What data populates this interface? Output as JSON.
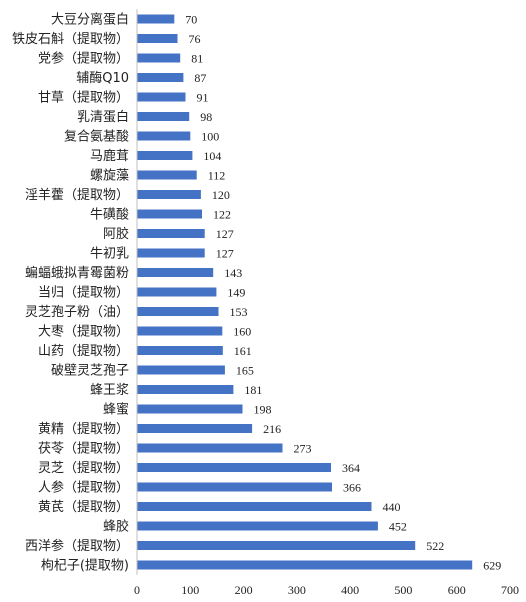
{
  "chart_data": {
    "type": "bar",
    "orientation": "horizontal",
    "categories": [
      "大豆分离蛋白",
      "铁皮石斛（提取物）",
      "党参（提取物）",
      "辅酶Q10",
      "甘草（提取物）",
      "乳清蛋白",
      "复合氨基酸",
      "马鹿茸",
      "螺旋藻",
      "淫羊藿（提取物）",
      "牛磺酸",
      "阿胶",
      "牛初乳",
      "蝙蝠蛾拟青霉菌粉",
      "当归（提取物）",
      "灵芝孢子粉（油）",
      "大枣（提取物）",
      "山药（提取物）",
      "破壁灵芝孢子",
      "蜂王浆",
      "蜂蜜",
      "黄精（提取物）",
      "茯苓（提取物）",
      "灵芝（提取物）",
      "人参（提取物）",
      "黄芪（提取物）",
      "蜂胶",
      "西洋参（提取物）",
      "枸杞子(提取物)"
    ],
    "values": [
      70,
      76,
      81,
      87,
      91,
      98,
      100,
      104,
      112,
      120,
      122,
      127,
      127,
      143,
      149,
      153,
      160,
      161,
      165,
      181,
      198,
      216,
      273,
      364,
      366,
      440,
      452,
      522,
      629
    ],
    "xlim": [
      0,
      700
    ],
    "xticks": [
      "0",
      "100",
      "200",
      "300",
      "400",
      "500",
      "600",
      "700"
    ],
    "bar_color": "#4472c4",
    "grid": false,
    "legend": "none"
  }
}
